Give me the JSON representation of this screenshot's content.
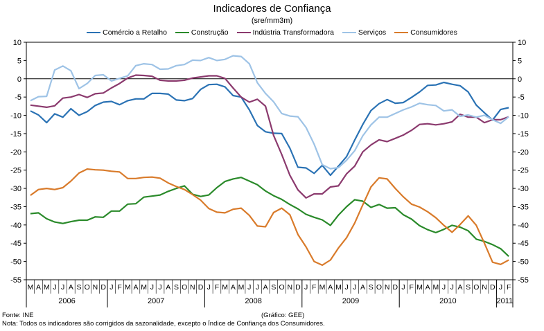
{
  "chart_data": {
    "type": "line",
    "title": "Indicadores de Confiança",
    "subtitle": "(sre/mm3m)",
    "ylim": [
      -55,
      10
    ],
    "yticks": [
      10,
      5,
      0,
      -5,
      -10,
      -15,
      -20,
      -25,
      -30,
      -35,
      -40,
      -45,
      -50,
      -55
    ],
    "month_labels": [
      "M",
      "A",
      "M",
      "J",
      "J",
      "A",
      "S",
      "O",
      "N",
      "D",
      "J",
      "F",
      "M",
      "A",
      "M",
      "J",
      "J",
      "A",
      "S",
      "O",
      "N",
      "D",
      "J",
      "F",
      "M",
      "A",
      "M",
      "J",
      "J",
      "A",
      "S",
      "O",
      "N",
      "D",
      "J",
      "F",
      "M",
      "A",
      "M",
      "J",
      "J",
      "A",
      "S",
      "O",
      "N",
      "D",
      "J",
      "F",
      "M",
      "A",
      "M",
      "J",
      "J",
      "A",
      "S",
      "O",
      "N",
      "D",
      "J",
      "F"
    ],
    "years": [
      {
        "label": "2006",
        "start": 0,
        "end": 9
      },
      {
        "label": "2007",
        "start": 10,
        "end": 21
      },
      {
        "label": "2008",
        "start": 22,
        "end": 33
      },
      {
        "label": "2009",
        "start": 34,
        "end": 45
      },
      {
        "label": "2010",
        "start": 46,
        "end": 57
      },
      {
        "label": "2011",
        "start": 58,
        "end": 59
      }
    ],
    "series": [
      {
        "name": "Comércio a Retalho",
        "color": "#2a72b4",
        "values": [
          -8.8,
          -9.9,
          -12,
          -9.6,
          -10.5,
          -8.2,
          -10,
          -9,
          -7.3,
          -6.4,
          -6.2,
          -7.1,
          -6,
          -5.5,
          -5.5,
          -4,
          -4,
          -4.2,
          -5.8,
          -6,
          -5.4,
          -2.9,
          -1.6,
          -1.5,
          -2.2,
          -4.6,
          -5,
          -8.5,
          -12.8,
          -14.5,
          -14.9,
          -15,
          -19,
          -24.2,
          -24.4,
          -25.9,
          -23.7,
          -26.4,
          -23.9,
          -21.3,
          -16.8,
          -12.5,
          -8.7,
          -6.8,
          -5.7,
          -6.7,
          -6.5,
          -5.1,
          -3.6,
          -1.8,
          -1.7,
          -1,
          -1.5,
          -1.9,
          -3.6,
          -7.2,
          -9.3,
          -11.3,
          -8.4,
          -7.9
        ]
      },
      {
        "name": "Construção",
        "color": "#2a8a2a",
        "values": [
          -36.9,
          -36.7,
          -38.3,
          -39.2,
          -39.6,
          -39.1,
          -38.7,
          -38.7,
          -37.8,
          -37.9,
          -36.2,
          -36.2,
          -34.3,
          -34.2,
          -32.4,
          -32.1,
          -31.8,
          -30.8,
          -30,
          -29.3,
          -31.6,
          -32.2,
          -31.8,
          -29.8,
          -28.1,
          -27.4,
          -27,
          -28,
          -29,
          -30.7,
          -32,
          -33,
          -34.4,
          -35.6,
          -37.1,
          -37.9,
          -38.6,
          -40.1,
          -37.3,
          -35,
          -33.1,
          -33.5,
          -35.2,
          -34.4,
          -35.4,
          -35.3,
          -37.2,
          -38.4,
          -40.2,
          -41.3,
          -42.1,
          -41.2,
          -40.1,
          -40.6,
          -41.6,
          -43.9,
          -44.5,
          -45.4,
          -46.5,
          -48.6
        ]
      },
      {
        "name": "Indústria Transformadora",
        "color": "#8b3a6e",
        "values": [
          -7.2,
          -7.5,
          -7.8,
          -7.4,
          -5.3,
          -5,
          -4.3,
          -5.1,
          -4.1,
          -3.9,
          -2.5,
          -1.3,
          0.2,
          1,
          0.9,
          0.7,
          -0.4,
          -0.6,
          -0.6,
          -0.4,
          0.2,
          0.5,
          0.8,
          0.8,
          0.1,
          -2.5,
          -5,
          -6.4,
          -5.6,
          -7.5,
          -15.5,
          -20.7,
          -26.4,
          -30.4,
          -32.6,
          -31.5,
          -31.5,
          -29.6,
          -29.3,
          -26,
          -23.9,
          -20,
          -18.1,
          -16.7,
          -17.2,
          -16.3,
          -15.4,
          -14.1,
          -12.5,
          -12.3,
          -12.6,
          -12.3,
          -11.8,
          -9.7,
          -10.5,
          -10.5,
          -12,
          -11.2,
          -11.2,
          -10.4
        ]
      },
      {
        "name": "Serviços",
        "color": "#9ec3e6",
        "values": [
          -6,
          -4.9,
          -4.8,
          2.4,
          3.5,
          2.2,
          -2.7,
          -1.3,
          0.9,
          1.1,
          -0.6,
          0.1,
          0.8,
          3.6,
          4.1,
          3.9,
          2.6,
          2.7,
          3.6,
          3.9,
          5.1,
          5,
          5.8,
          5,
          5.3,
          6.3,
          6.1,
          4.1,
          -1.1,
          -4,
          -6.3,
          -9.5,
          -10.2,
          -10.4,
          -13.3,
          -17.9,
          -23.5,
          -24.6,
          -24.3,
          -22.3,
          -19.7,
          -15.6,
          -12.6,
          -10.5,
          -10.5,
          -9.5,
          -8.5,
          -7.7,
          -6.7,
          -7.1,
          -7.3,
          -8.8,
          -8.5,
          -10.3,
          -9.9,
          -10.5,
          -10,
          -11.2,
          -12.2,
          -10.4
        ]
      },
      {
        "name": "Consumidores",
        "color": "#d97b2b",
        "values": [
          -31.9,
          -30.3,
          -30,
          -30.3,
          -29.8,
          -28,
          -25.8,
          -24.7,
          -24.9,
          -25,
          -25.3,
          -25.5,
          -27.3,
          -27.3,
          -27,
          -26.9,
          -27.2,
          -28.5,
          -29.5,
          -30.3,
          -31.7,
          -33.2,
          -35.5,
          -36.5,
          -36.7,
          -35.7,
          -35.4,
          -37.4,
          -40.3,
          -40.5,
          -36.6,
          -35.4,
          -37.2,
          -42.6,
          -46,
          -50,
          -51,
          -49.6,
          -46.3,
          -43.5,
          -39.5,
          -34.5,
          -29.6,
          -27.1,
          -27.4,
          -30,
          -32.3,
          -34.3,
          -35.1,
          -36.4,
          -38,
          -40.1,
          -42,
          -39.9,
          -37.5,
          -40.1,
          -45,
          -50.2,
          -50.8,
          -49.6
        ]
      }
    ]
  },
  "footer": {
    "source": "Fonte: INE",
    "credit": "(Gráfico: GEE)",
    "note": "Nota: Todos os indicadores são corrigidos da sazonalidade, excepto o Índice de Confiança dos Consumidores."
  }
}
